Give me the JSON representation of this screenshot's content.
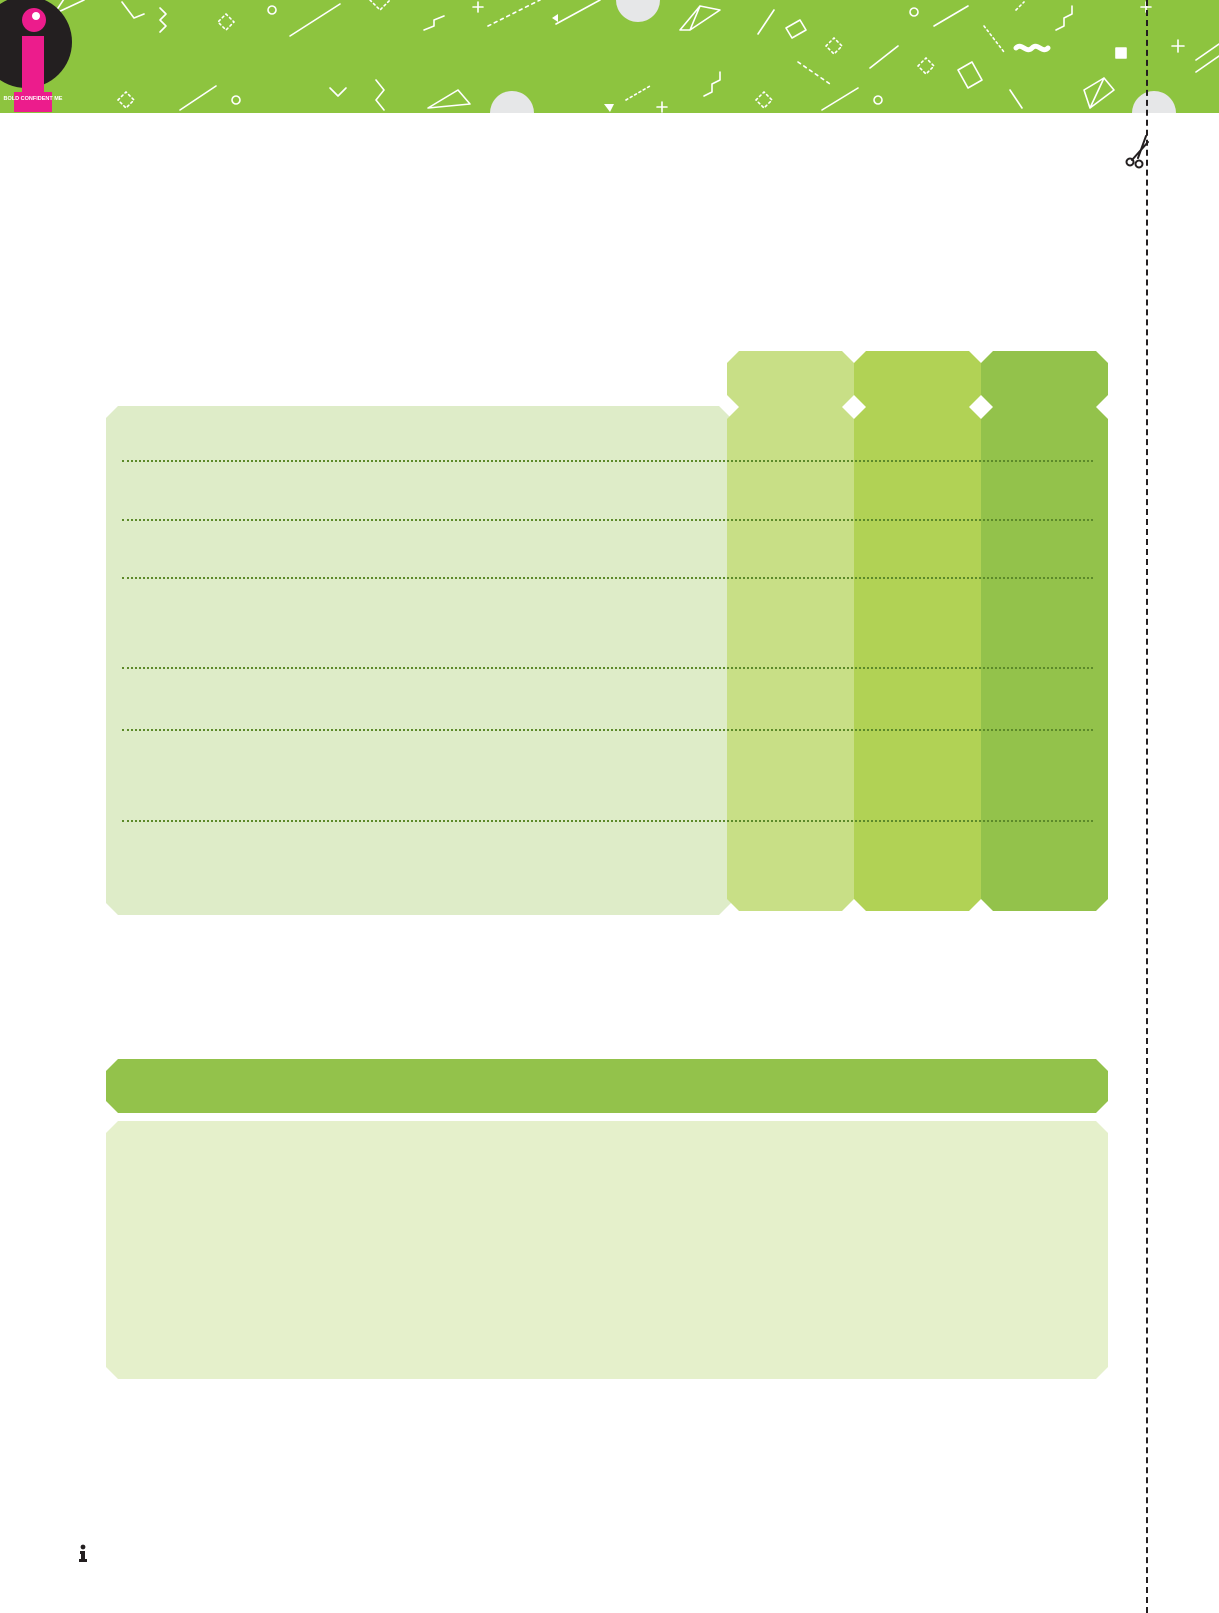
{
  "logo": {
    "letter": "i",
    "tagline": "BOLD CONFIDENT ME"
  },
  "header": {
    "background_color": "#8dc43f"
  },
  "rating_table": {
    "panel_color": "#deecc8",
    "column_colors": [
      "#c8df86",
      "#b1d255",
      "#93c24b"
    ],
    "column_headers": [
      "",
      "",
      ""
    ],
    "row_count": 6
  },
  "notes_section": {
    "title": "",
    "bar_color": "#93c24b",
    "box_color": "#e5f0cb"
  },
  "icons": {
    "cut_mark": "scissors-icon",
    "footer": "info-i-icon"
  }
}
